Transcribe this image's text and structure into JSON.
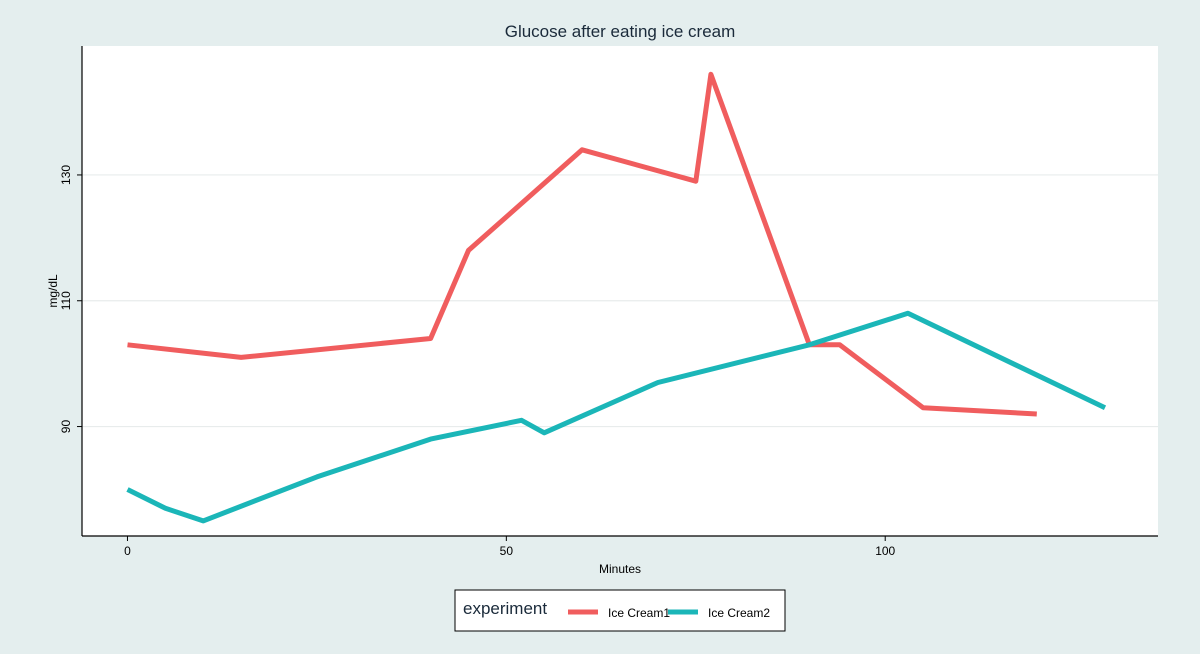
{
  "chart_data": {
    "type": "line",
    "title": "Glucose after eating ice cream",
    "xlabel": "Minutes",
    "ylabel": "mg/dL",
    "xlim": [
      -6,
      136
    ],
    "ylim": [
      72.6,
      150.5
    ],
    "x_ticks": [
      0,
      50,
      100
    ],
    "y_ticks": [
      90,
      110,
      130
    ],
    "grid": "horizontal",
    "legend": {
      "title": "experiment",
      "placement": "bottom"
    },
    "series": [
      {
        "name": "Ice Cream1",
        "color": "#f05d5e",
        "points": [
          [
            0,
            103
          ],
          [
            15,
            101
          ],
          [
            40,
            104
          ],
          [
            45,
            118
          ],
          [
            60,
            134
          ],
          [
            75,
            129
          ],
          [
            77,
            146
          ],
          [
            90,
            103
          ],
          [
            94,
            103
          ],
          [
            105,
            93
          ],
          [
            120,
            92
          ]
        ]
      },
      {
        "name": "Ice Cream2",
        "color": "#1bb6b8",
        "points": [
          [
            0,
            80
          ],
          [
            5,
            77
          ],
          [
            10,
            75
          ],
          [
            25,
            82
          ],
          [
            40,
            88
          ],
          [
            52,
            91
          ],
          [
            55,
            89
          ],
          [
            70,
            97
          ],
          [
            90,
            103
          ],
          [
            103,
            108
          ],
          [
            129,
            93
          ]
        ]
      }
    ]
  }
}
